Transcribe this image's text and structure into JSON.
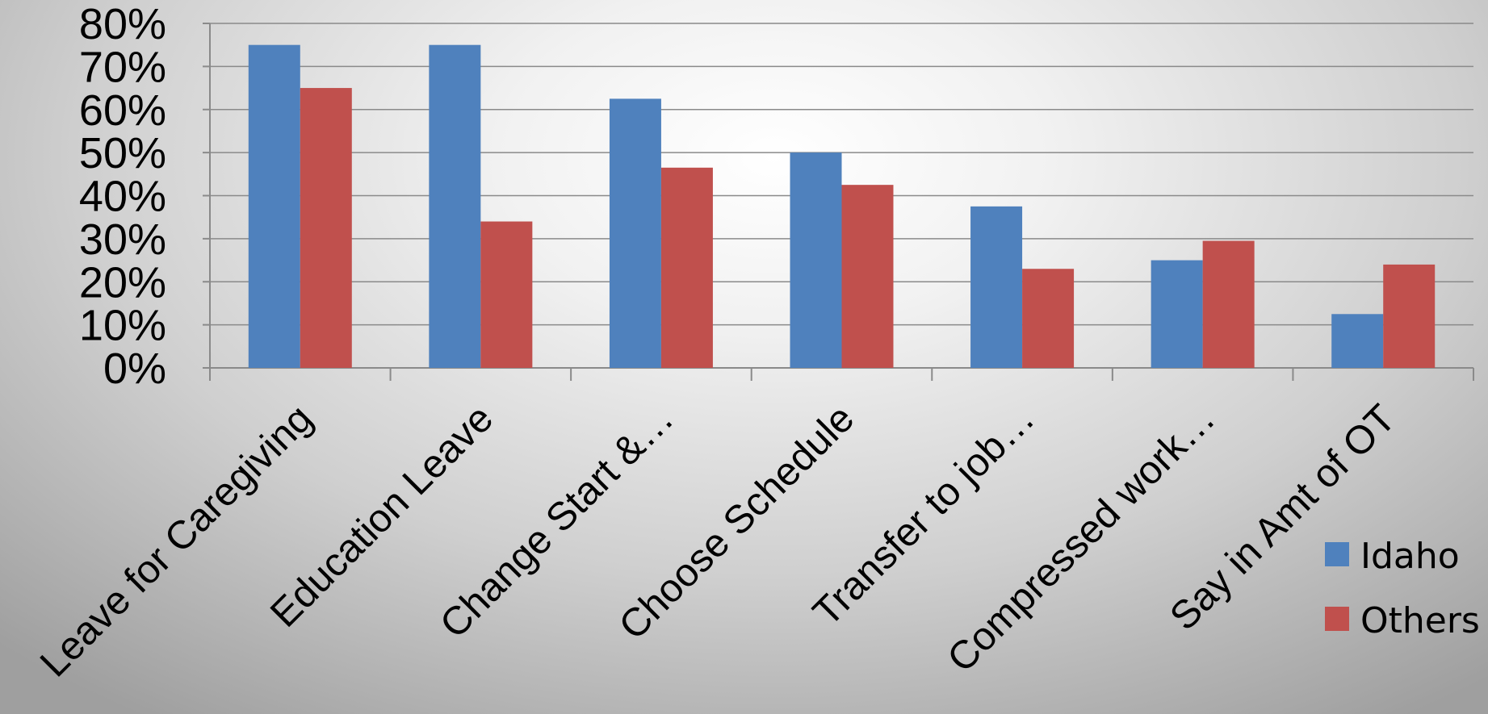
{
  "chart_data": {
    "type": "bar",
    "categories": [
      "Leave for Caregiving",
      "Education Leave",
      "Change Start &…",
      "Choose Schedule",
      "Transfer to job…",
      "Compressed work…",
      "Say in Amt of OT"
    ],
    "series": [
      {
        "name": "Idaho",
        "color": "#4f81bd",
        "values": [
          75,
          75,
          62.5,
          50,
          37.5,
          25,
          12.5
        ]
      },
      {
        "name": "Others",
        "color": "#c0504d",
        "values": [
          65,
          34,
          46.5,
          42.5,
          23,
          29.5,
          24
        ]
      }
    ],
    "y_ticks": [
      "0%",
      "10%",
      "20%",
      "30%",
      "40%",
      "50%",
      "60%",
      "70%",
      "80%"
    ],
    "ylim": [
      0,
      80
    ],
    "grid": true,
    "legend_position": "bottom-right"
  }
}
